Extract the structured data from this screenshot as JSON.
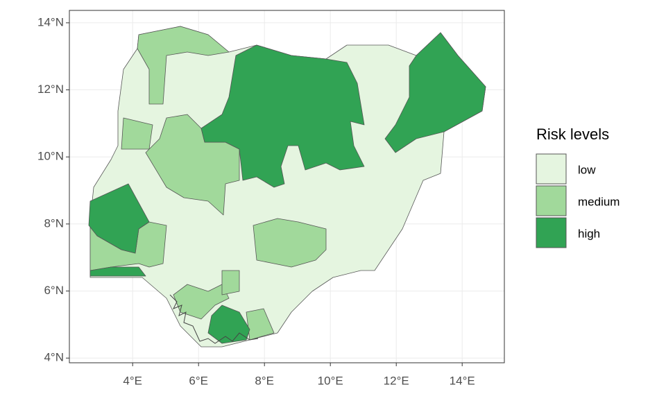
{
  "chart_data": {
    "type": "map",
    "xlim": [
      2.08,
      15.28
    ],
    "ylim": [
      3.86,
      14.37
    ],
    "xticks": [
      {
        "value": 4,
        "label": "4°E"
      },
      {
        "value": 6,
        "label": "6°E"
      },
      {
        "value": 8,
        "label": "8°E"
      },
      {
        "value": 10,
        "label": "10°E"
      },
      {
        "value": 12,
        "label": "12°E"
      },
      {
        "value": 14,
        "label": "14°E"
      }
    ],
    "yticks": [
      {
        "value": 4,
        "label": "4°N"
      },
      {
        "value": 6,
        "label": "6°N"
      },
      {
        "value": 8,
        "label": "8°N"
      },
      {
        "value": 10,
        "label": "10°N"
      },
      {
        "value": 12,
        "label": "12°N"
      },
      {
        "value": 14,
        "label": "14°N"
      }
    ],
    "grid": true,
    "legend": {
      "title": "Risk levels",
      "items": [
        {
          "label": "low",
          "color": "#e5f5e0"
        },
        {
          "label": "medium",
          "color": "#a1d99b"
        },
        {
          "label": "high",
          "color": "#31a354"
        }
      ]
    }
  }
}
